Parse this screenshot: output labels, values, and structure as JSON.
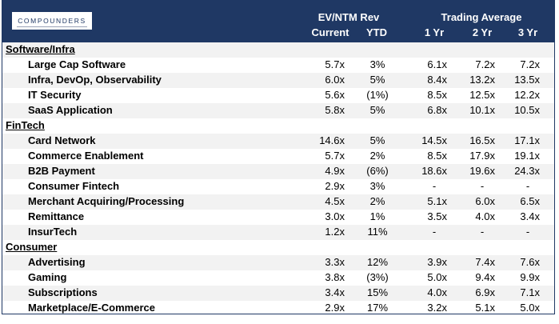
{
  "header": {
    "logo_text": "COMPOUNDERS",
    "group_ev": "EV/NTM Rev",
    "group_trading": "Trading Average",
    "col_current": "Current",
    "col_ytd": "YTD",
    "col_1yr": "1 Yr",
    "col_2yr": "2 Yr",
    "col_3yr": "3 Yr"
  },
  "rows": [
    {
      "type": "section",
      "label": "Software/Infra"
    },
    {
      "type": "item",
      "label": "Large Cap Software",
      "current": "5.7x",
      "ytd": "3%",
      "y1": "6.1x",
      "y2": "7.2x",
      "y3": "7.2x"
    },
    {
      "type": "item",
      "label": "Infra, DevOp, Observability",
      "current": "6.0x",
      "ytd": "5%",
      "y1": "8.4x",
      "y2": "13.2x",
      "y3": "13.5x"
    },
    {
      "type": "item",
      "label": "IT Security",
      "current": "5.6x",
      "ytd": "(1%)",
      "y1": "8.5x",
      "y2": "12.5x",
      "y3": "12.2x"
    },
    {
      "type": "item",
      "label": "SaaS Application",
      "current": "5.8x",
      "ytd": "5%",
      "y1": "6.8x",
      "y2": "10.1x",
      "y3": "10.5x"
    },
    {
      "type": "section",
      "label": "FinTech"
    },
    {
      "type": "item",
      "label": "Card Network",
      "current": "14.6x",
      "ytd": "5%",
      "y1": "14.5x",
      "y2": "16.5x",
      "y3": "17.1x"
    },
    {
      "type": "item",
      "label": "Commerce Enablement",
      "current": "5.7x",
      "ytd": "2%",
      "y1": "8.5x",
      "y2": "17.9x",
      "y3": "19.1x"
    },
    {
      "type": "item",
      "label": "B2B Payment",
      "current": "4.9x",
      "ytd": "(6%)",
      "y1": "18.6x",
      "y2": "19.6x",
      "y3": "24.3x"
    },
    {
      "type": "item",
      "label": "Consumer Fintech",
      "current": "2.9x",
      "ytd": "3%",
      "y1": "-",
      "y2": "-",
      "y3": "-"
    },
    {
      "type": "item",
      "label": "Merchant Acquiring/Processing",
      "current": "4.5x",
      "ytd": "2%",
      "y1": "5.1x",
      "y2": "6.0x",
      "y3": "6.5x"
    },
    {
      "type": "item",
      "label": "Remittance",
      "current": "3.0x",
      "ytd": "1%",
      "y1": "3.5x",
      "y2": "4.0x",
      "y3": "3.4x"
    },
    {
      "type": "item",
      "label": "InsurTech",
      "current": "1.2x",
      "ytd": "11%",
      "y1": "-",
      "y2": "-",
      "y3": "-"
    },
    {
      "type": "section",
      "label": "Consumer"
    },
    {
      "type": "item",
      "label": "Advertising",
      "current": "3.3x",
      "ytd": "12%",
      "y1": "3.9x",
      "y2": "7.4x",
      "y3": "7.6x"
    },
    {
      "type": "item",
      "label": "Gaming",
      "current": "3.8x",
      "ytd": "(3%)",
      "y1": "5.0x",
      "y2": "9.4x",
      "y3": "9.9x"
    },
    {
      "type": "item",
      "label": "Subscriptions",
      "current": "3.4x",
      "ytd": "15%",
      "y1": "4.0x",
      "y2": "6.9x",
      "y3": "7.1x"
    },
    {
      "type": "item",
      "label": "Marketplace/E-Commerce",
      "current": "2.9x",
      "ytd": "17%",
      "y1": "3.2x",
      "y2": "5.1x",
      "y3": "5.0x"
    }
  ]
}
